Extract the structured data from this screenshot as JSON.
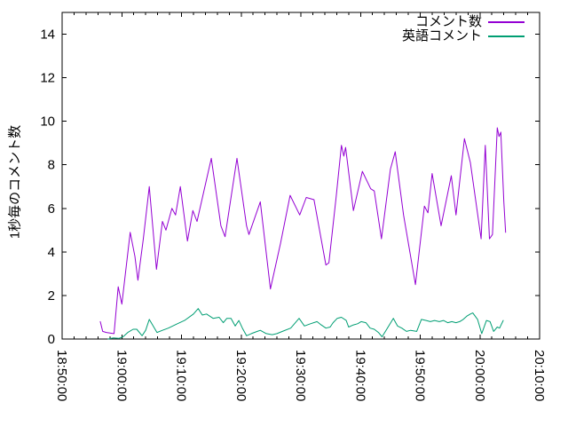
{
  "figure": {
    "background": "#ffffff",
    "border_color": "#000000",
    "text_color": "#000000"
  },
  "chart_data": {
    "type": "line",
    "title": "",
    "xlabel": "",
    "ylabel": "1秒毎のコメント数",
    "grid": false,
    "legend_position": "top-right-inside",
    "x_axis": {
      "unit": "minutes since 18:50:00",
      "range": [
        0,
        80
      ],
      "major_tick_interval": 10,
      "minor_tick_interval": 2,
      "tick_labels": [
        "18:50:00",
        "19:00:00",
        "19:10:00",
        "19:20:00",
        "19:30:00",
        "19:40:00",
        "19:50:00",
        "20:00:00",
        "20:10:00"
      ],
      "tick_label_rotation_deg": 90
    },
    "y_axis": {
      "range": [
        0,
        15
      ],
      "tick_values": [
        0,
        2,
        4,
        6,
        8,
        10,
        12,
        14
      ],
      "tick_labels": [
        "0",
        "2",
        "4",
        "6",
        "8",
        "10",
        "12",
        "14"
      ]
    },
    "series": [
      {
        "name": "コメント数",
        "color": "#9400d3",
        "points": [
          [
            6.4,
            0.8
          ],
          [
            6.8,
            0.35
          ],
          [
            7.4,
            0.3
          ],
          [
            8.7,
            0.25
          ],
          [
            9.4,
            2.4
          ],
          [
            10.0,
            1.6
          ],
          [
            11.4,
            4.9
          ],
          [
            12.2,
            3.8
          ],
          [
            12.7,
            2.7
          ],
          [
            13.6,
            4.6
          ],
          [
            14.6,
            7.0
          ],
          [
            15.8,
            3.2
          ],
          [
            16.8,
            5.4
          ],
          [
            17.4,
            5.0
          ],
          [
            18.4,
            6.0
          ],
          [
            19.0,
            5.7
          ],
          [
            19.8,
            7.0
          ],
          [
            21.0,
            4.5
          ],
          [
            21.9,
            5.9
          ],
          [
            22.6,
            5.4
          ],
          [
            25.0,
            8.3
          ],
          [
            26.6,
            5.2
          ],
          [
            27.3,
            4.7
          ],
          [
            29.3,
            8.3
          ],
          [
            30.9,
            5.2
          ],
          [
            31.3,
            4.8
          ],
          [
            33.2,
            6.3
          ],
          [
            34.9,
            2.3
          ],
          [
            36.6,
            4.4
          ],
          [
            38.2,
            6.6
          ],
          [
            39.8,
            5.7
          ],
          [
            40.9,
            6.5
          ],
          [
            42.2,
            6.4
          ],
          [
            44.2,
            3.4
          ],
          [
            44.7,
            3.5
          ],
          [
            45.9,
            6.5
          ],
          [
            46.8,
            8.9
          ],
          [
            47.2,
            8.4
          ],
          [
            47.5,
            8.8
          ],
          [
            48.8,
            5.9
          ],
          [
            50.3,
            7.7
          ],
          [
            51.7,
            6.9
          ],
          [
            52.3,
            6.8
          ],
          [
            53.5,
            4.6
          ],
          [
            55.0,
            7.8
          ],
          [
            55.8,
            8.6
          ],
          [
            57.2,
            5.7
          ],
          [
            59.2,
            2.5
          ],
          [
            60.7,
            6.1
          ],
          [
            61.3,
            5.8
          ],
          [
            62.0,
            7.6
          ],
          [
            63.5,
            5.2
          ],
          [
            65.2,
            7.5
          ],
          [
            66.0,
            5.7
          ],
          [
            67.4,
            9.2
          ],
          [
            68.4,
            8.1
          ],
          [
            70.2,
            4.6
          ],
          [
            70.9,
            8.9
          ],
          [
            71.6,
            4.6
          ],
          [
            72.1,
            4.8
          ],
          [
            72.9,
            9.7
          ],
          [
            73.2,
            9.3
          ],
          [
            73.5,
            9.5
          ],
          [
            74.0,
            6.3
          ],
          [
            74.3,
            4.9
          ]
        ]
      },
      {
        "name": "英語コメント",
        "color": "#009e73",
        "points": [
          [
            7.7,
            0.0
          ],
          [
            8.6,
            0.05
          ],
          [
            9.5,
            0.03
          ],
          [
            10.2,
            0.1
          ],
          [
            11.0,
            0.3
          ],
          [
            11.9,
            0.45
          ],
          [
            12.5,
            0.45
          ],
          [
            13.4,
            0.15
          ],
          [
            14.0,
            0.4
          ],
          [
            14.6,
            0.9
          ],
          [
            15.9,
            0.3
          ],
          [
            16.8,
            0.4
          ],
          [
            17.8,
            0.5
          ],
          [
            19.3,
            0.7
          ],
          [
            20.5,
            0.85
          ],
          [
            22.0,
            1.15
          ],
          [
            22.8,
            1.4
          ],
          [
            23.5,
            1.1
          ],
          [
            24.2,
            1.15
          ],
          [
            25.3,
            0.95
          ],
          [
            26.3,
            1.0
          ],
          [
            27.0,
            0.75
          ],
          [
            27.6,
            0.95
          ],
          [
            28.3,
            0.95
          ],
          [
            29.0,
            0.6
          ],
          [
            29.6,
            0.85
          ],
          [
            30.2,
            0.5
          ],
          [
            30.9,
            0.15
          ],
          [
            31.7,
            0.25
          ],
          [
            32.7,
            0.35
          ],
          [
            33.2,
            0.4
          ],
          [
            34.2,
            0.25
          ],
          [
            35.2,
            0.2
          ],
          [
            36.0,
            0.25
          ],
          [
            36.9,
            0.35
          ],
          [
            38.3,
            0.5
          ],
          [
            39.7,
            0.95
          ],
          [
            40.6,
            0.6
          ],
          [
            41.6,
            0.7
          ],
          [
            42.7,
            0.8
          ],
          [
            43.4,
            0.65
          ],
          [
            44.2,
            0.5
          ],
          [
            44.9,
            0.55
          ],
          [
            45.4,
            0.75
          ],
          [
            46.1,
            0.95
          ],
          [
            46.8,
            1.0
          ],
          [
            47.6,
            0.85
          ],
          [
            48.0,
            0.55
          ],
          [
            48.8,
            0.65
          ],
          [
            49.5,
            0.7
          ],
          [
            50.1,
            0.8
          ],
          [
            50.9,
            0.75
          ],
          [
            51.6,
            0.5
          ],
          [
            52.3,
            0.45
          ],
          [
            53.0,
            0.3
          ],
          [
            53.6,
            0.1
          ],
          [
            54.5,
            0.5
          ],
          [
            55.5,
            0.95
          ],
          [
            56.2,
            0.6
          ],
          [
            56.9,
            0.5
          ],
          [
            57.7,
            0.35
          ],
          [
            58.4,
            0.4
          ],
          [
            59.4,
            0.35
          ],
          [
            60.2,
            0.9
          ],
          [
            61.0,
            0.85
          ],
          [
            61.7,
            0.8
          ],
          [
            62.4,
            0.85
          ],
          [
            63.2,
            0.8
          ],
          [
            63.9,
            0.85
          ],
          [
            64.6,
            0.75
          ],
          [
            65.3,
            0.8
          ],
          [
            66.0,
            0.75
          ],
          [
            66.6,
            0.8
          ],
          [
            67.2,
            0.9
          ],
          [
            67.8,
            1.05
          ],
          [
            68.4,
            1.15
          ],
          [
            68.8,
            1.2
          ],
          [
            69.6,
            0.9
          ],
          [
            70.3,
            0.25
          ],
          [
            71.1,
            0.85
          ],
          [
            71.7,
            0.8
          ],
          [
            72.3,
            0.35
          ],
          [
            72.9,
            0.55
          ],
          [
            73.3,
            0.5
          ],
          [
            73.9,
            0.85
          ]
        ]
      }
    ]
  }
}
